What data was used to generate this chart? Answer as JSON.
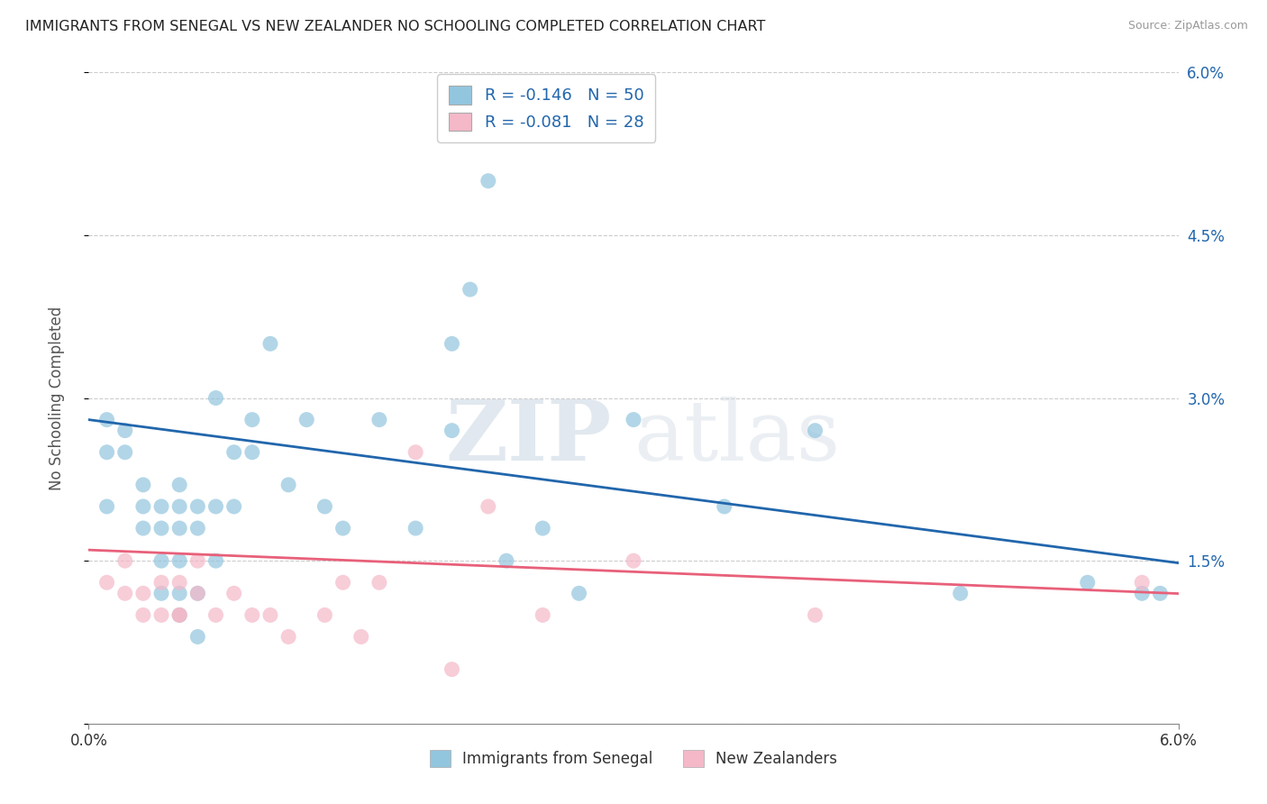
{
  "title": "IMMIGRANTS FROM SENEGAL VS NEW ZEALANDER NO SCHOOLING COMPLETED CORRELATION CHART",
  "source": "Source: ZipAtlas.com",
  "ylabel": "No Schooling Completed",
  "xlim": [
    0.0,
    0.06
  ],
  "ylim": [
    0.0,
    0.06
  ],
  "y_ticks": [
    0.0,
    0.015,
    0.03,
    0.045,
    0.06
  ],
  "y_tick_labels_right": [
    "",
    "1.5%",
    "3.0%",
    "4.5%",
    "6.0%"
  ],
  "x_tick_labels_bottom": [
    "0.0%",
    "6.0%"
  ],
  "x_ticks_bottom": [
    0.0,
    0.06
  ],
  "watermark_zip": "ZIP",
  "watermark_atlas": "atlas",
  "legend_line1": "R = -0.146   N = 50",
  "legend_line2": "R = -0.081   N = 28",
  "legend_label_blue": "Immigrants from Senegal",
  "legend_label_pink": "New Zealanders",
  "blue_color": "#92c5de",
  "pink_color": "#f4b8c8",
  "blue_line_color": "#2166ac",
  "pink_line_color": "#e8607a",
  "blue_intercept": 0.028,
  "blue_slope": -0.22,
  "pink_intercept": 0.016,
  "pink_slope": -0.067,
  "senegal_x": [
    0.001,
    0.001,
    0.001,
    0.002,
    0.002,
    0.003,
    0.003,
    0.003,
    0.004,
    0.004,
    0.004,
    0.004,
    0.005,
    0.005,
    0.005,
    0.005,
    0.005,
    0.005,
    0.006,
    0.006,
    0.006,
    0.006,
    0.007,
    0.007,
    0.007,
    0.008,
    0.008,
    0.009,
    0.009,
    0.01,
    0.011,
    0.012,
    0.013,
    0.014,
    0.016,
    0.018,
    0.02,
    0.021,
    0.022,
    0.025,
    0.027,
    0.03,
    0.035,
    0.04,
    0.048,
    0.055,
    0.058,
    0.059,
    0.02,
    0.023
  ],
  "senegal_y": [
    0.025,
    0.028,
    0.02,
    0.025,
    0.027,
    0.022,
    0.02,
    0.018,
    0.012,
    0.015,
    0.018,
    0.02,
    0.01,
    0.012,
    0.015,
    0.018,
    0.02,
    0.022,
    0.008,
    0.012,
    0.018,
    0.02,
    0.015,
    0.02,
    0.03,
    0.02,
    0.025,
    0.025,
    0.028,
    0.035,
    0.022,
    0.028,
    0.02,
    0.018,
    0.028,
    0.018,
    0.035,
    0.04,
    0.05,
    0.018,
    0.012,
    0.028,
    0.02,
    0.027,
    0.012,
    0.013,
    0.012,
    0.012,
    0.027,
    0.015
  ],
  "nz_x": [
    0.001,
    0.002,
    0.002,
    0.003,
    0.003,
    0.004,
    0.004,
    0.005,
    0.005,
    0.005,
    0.006,
    0.006,
    0.007,
    0.008,
    0.009,
    0.01,
    0.011,
    0.013,
    0.014,
    0.015,
    0.016,
    0.018,
    0.02,
    0.022,
    0.025,
    0.03,
    0.04,
    0.058
  ],
  "nz_y": [
    0.013,
    0.012,
    0.015,
    0.01,
    0.012,
    0.01,
    0.013,
    0.01,
    0.01,
    0.013,
    0.012,
    0.015,
    0.01,
    0.012,
    0.01,
    0.01,
    0.008,
    0.01,
    0.013,
    0.008,
    0.013,
    0.025,
    0.005,
    0.02,
    0.01,
    0.015,
    0.01,
    0.013
  ]
}
